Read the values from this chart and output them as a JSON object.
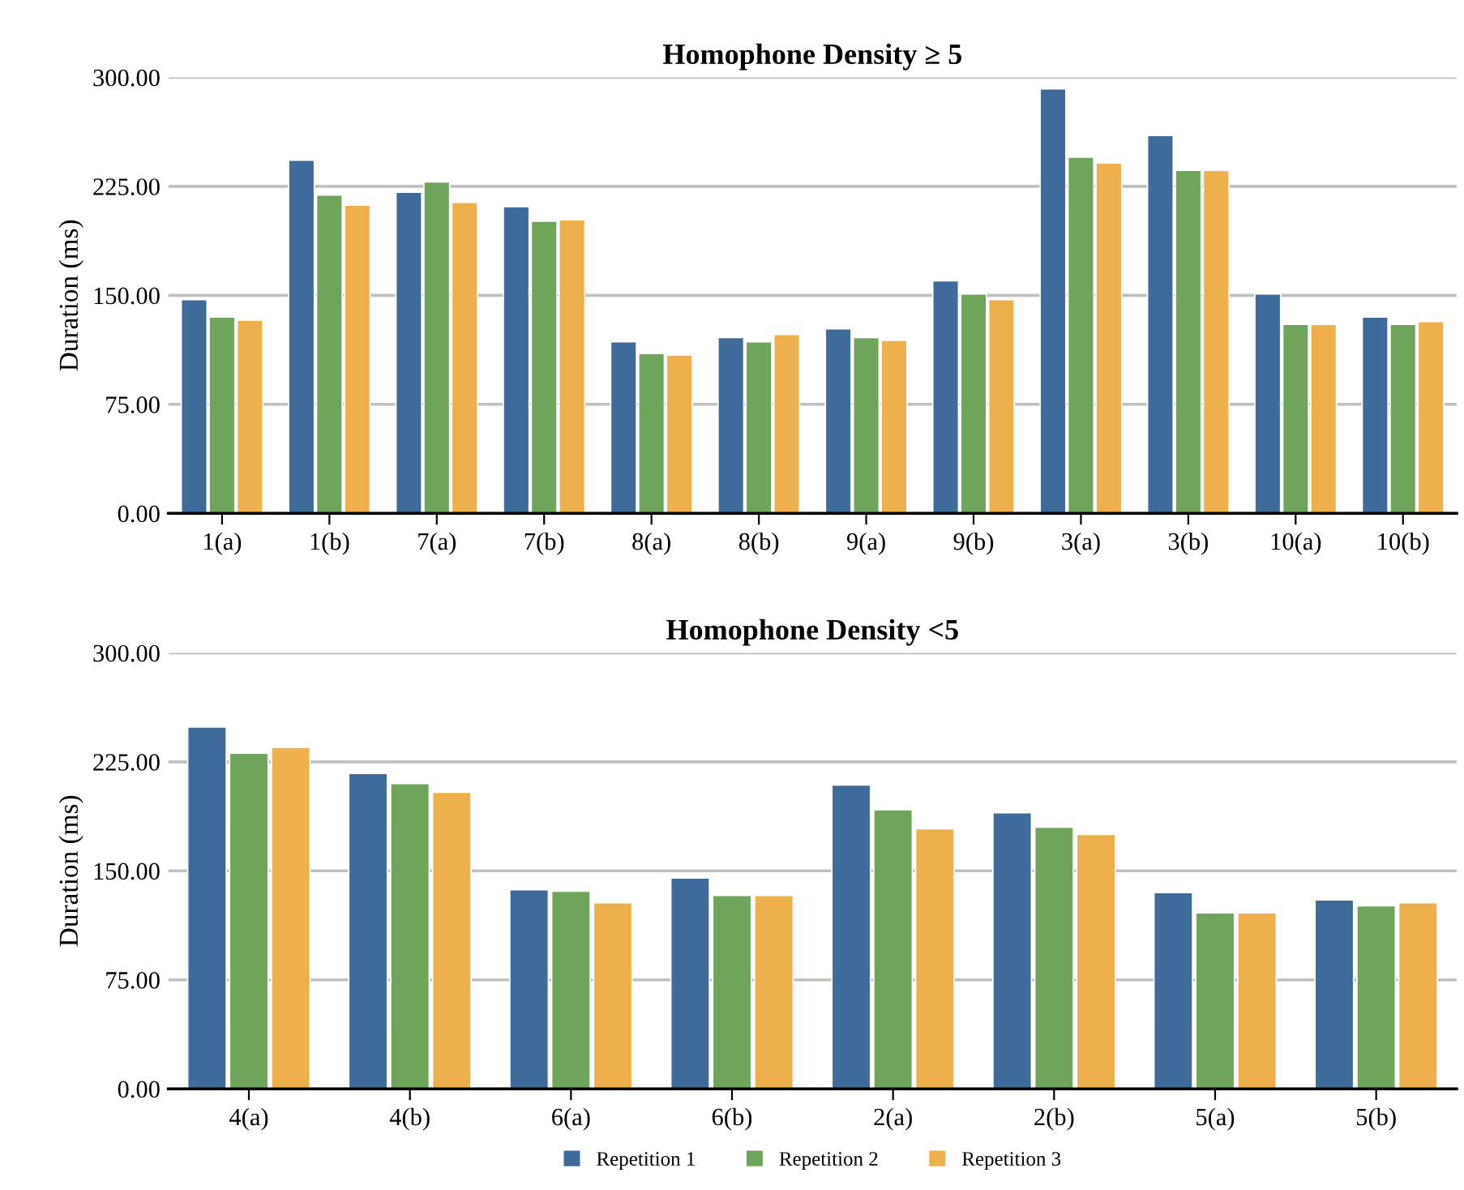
{
  "chart_data": [
    {
      "type": "bar",
      "title": "Homophone Density ≥ 5",
      "ylabel": "Duration (ms)",
      "categories": [
        "1(a)",
        "1(b)",
        "7(a)",
        "7(b)",
        "8(a)",
        "8(b)",
        "9(a)",
        "9(b)",
        "3(a)",
        "3(b)",
        "10(a)",
        "10(b)"
      ],
      "series": [
        {
          "color": "#3e6b9a",
          "values": [
            147,
            243,
            221,
            211,
            118,
            121,
            127,
            160,
            292,
            260,
            151,
            135
          ]
        },
        {
          "color": "#6fa55a",
          "values": [
            135,
            219,
            228,
            201,
            110,
            118,
            121,
            151,
            245,
            236,
            130,
            130
          ]
        },
        {
          "color": "#eeb04c",
          "values": [
            133,
            212,
            214,
            202,
            109,
            123,
            119,
            147,
            241,
            236,
            130,
            132
          ]
        }
      ],
      "ylim": [
        0,
        300
      ],
      "yticks": [
        {
          "value": 0,
          "label": "0.00"
        },
        {
          "value": 75,
          "label": "75.00"
        },
        {
          "value": 150,
          "label": "150.00"
        },
        {
          "value": 225,
          "label": "225.00"
        },
        {
          "value": 300,
          "label": "300.00"
        }
      ],
      "grid": "y"
    },
    {
      "type": "bar",
      "title": "Homophone Density <5",
      "ylabel": "Duration (ms)",
      "categories": [
        "4(a)",
        "4(b)",
        "6(a)",
        "6(b)",
        "2(a)",
        "2(b)",
        "5(a)",
        "5(b)"
      ],
      "series": [
        {
          "name": "Repetition 1",
          "color": "#3e6b9a",
          "values": [
            249,
            217,
            137,
            145,
            209,
            190,
            135,
            130
          ]
        },
        {
          "name": "Repetition 2",
          "color": "#6fa55a",
          "values": [
            231,
            210,
            136,
            133,
            192,
            180,
            121,
            126
          ]
        },
        {
          "name": "Repetition 3",
          "color": "#eeb04c",
          "values": [
            235,
            204,
            128,
            133,
            179,
            175,
            121,
            128
          ]
        }
      ],
      "ylim": [
        0,
        300
      ],
      "yticks": [
        {
          "value": 0,
          "label": "0.00"
        },
        {
          "value": 75,
          "label": "75.00"
        },
        {
          "value": 150,
          "label": "150.00"
        },
        {
          "value": 225,
          "label": "225.00"
        },
        {
          "value": 300,
          "label": "300.00"
        }
      ],
      "grid": "y",
      "legend": "bottom"
    }
  ]
}
